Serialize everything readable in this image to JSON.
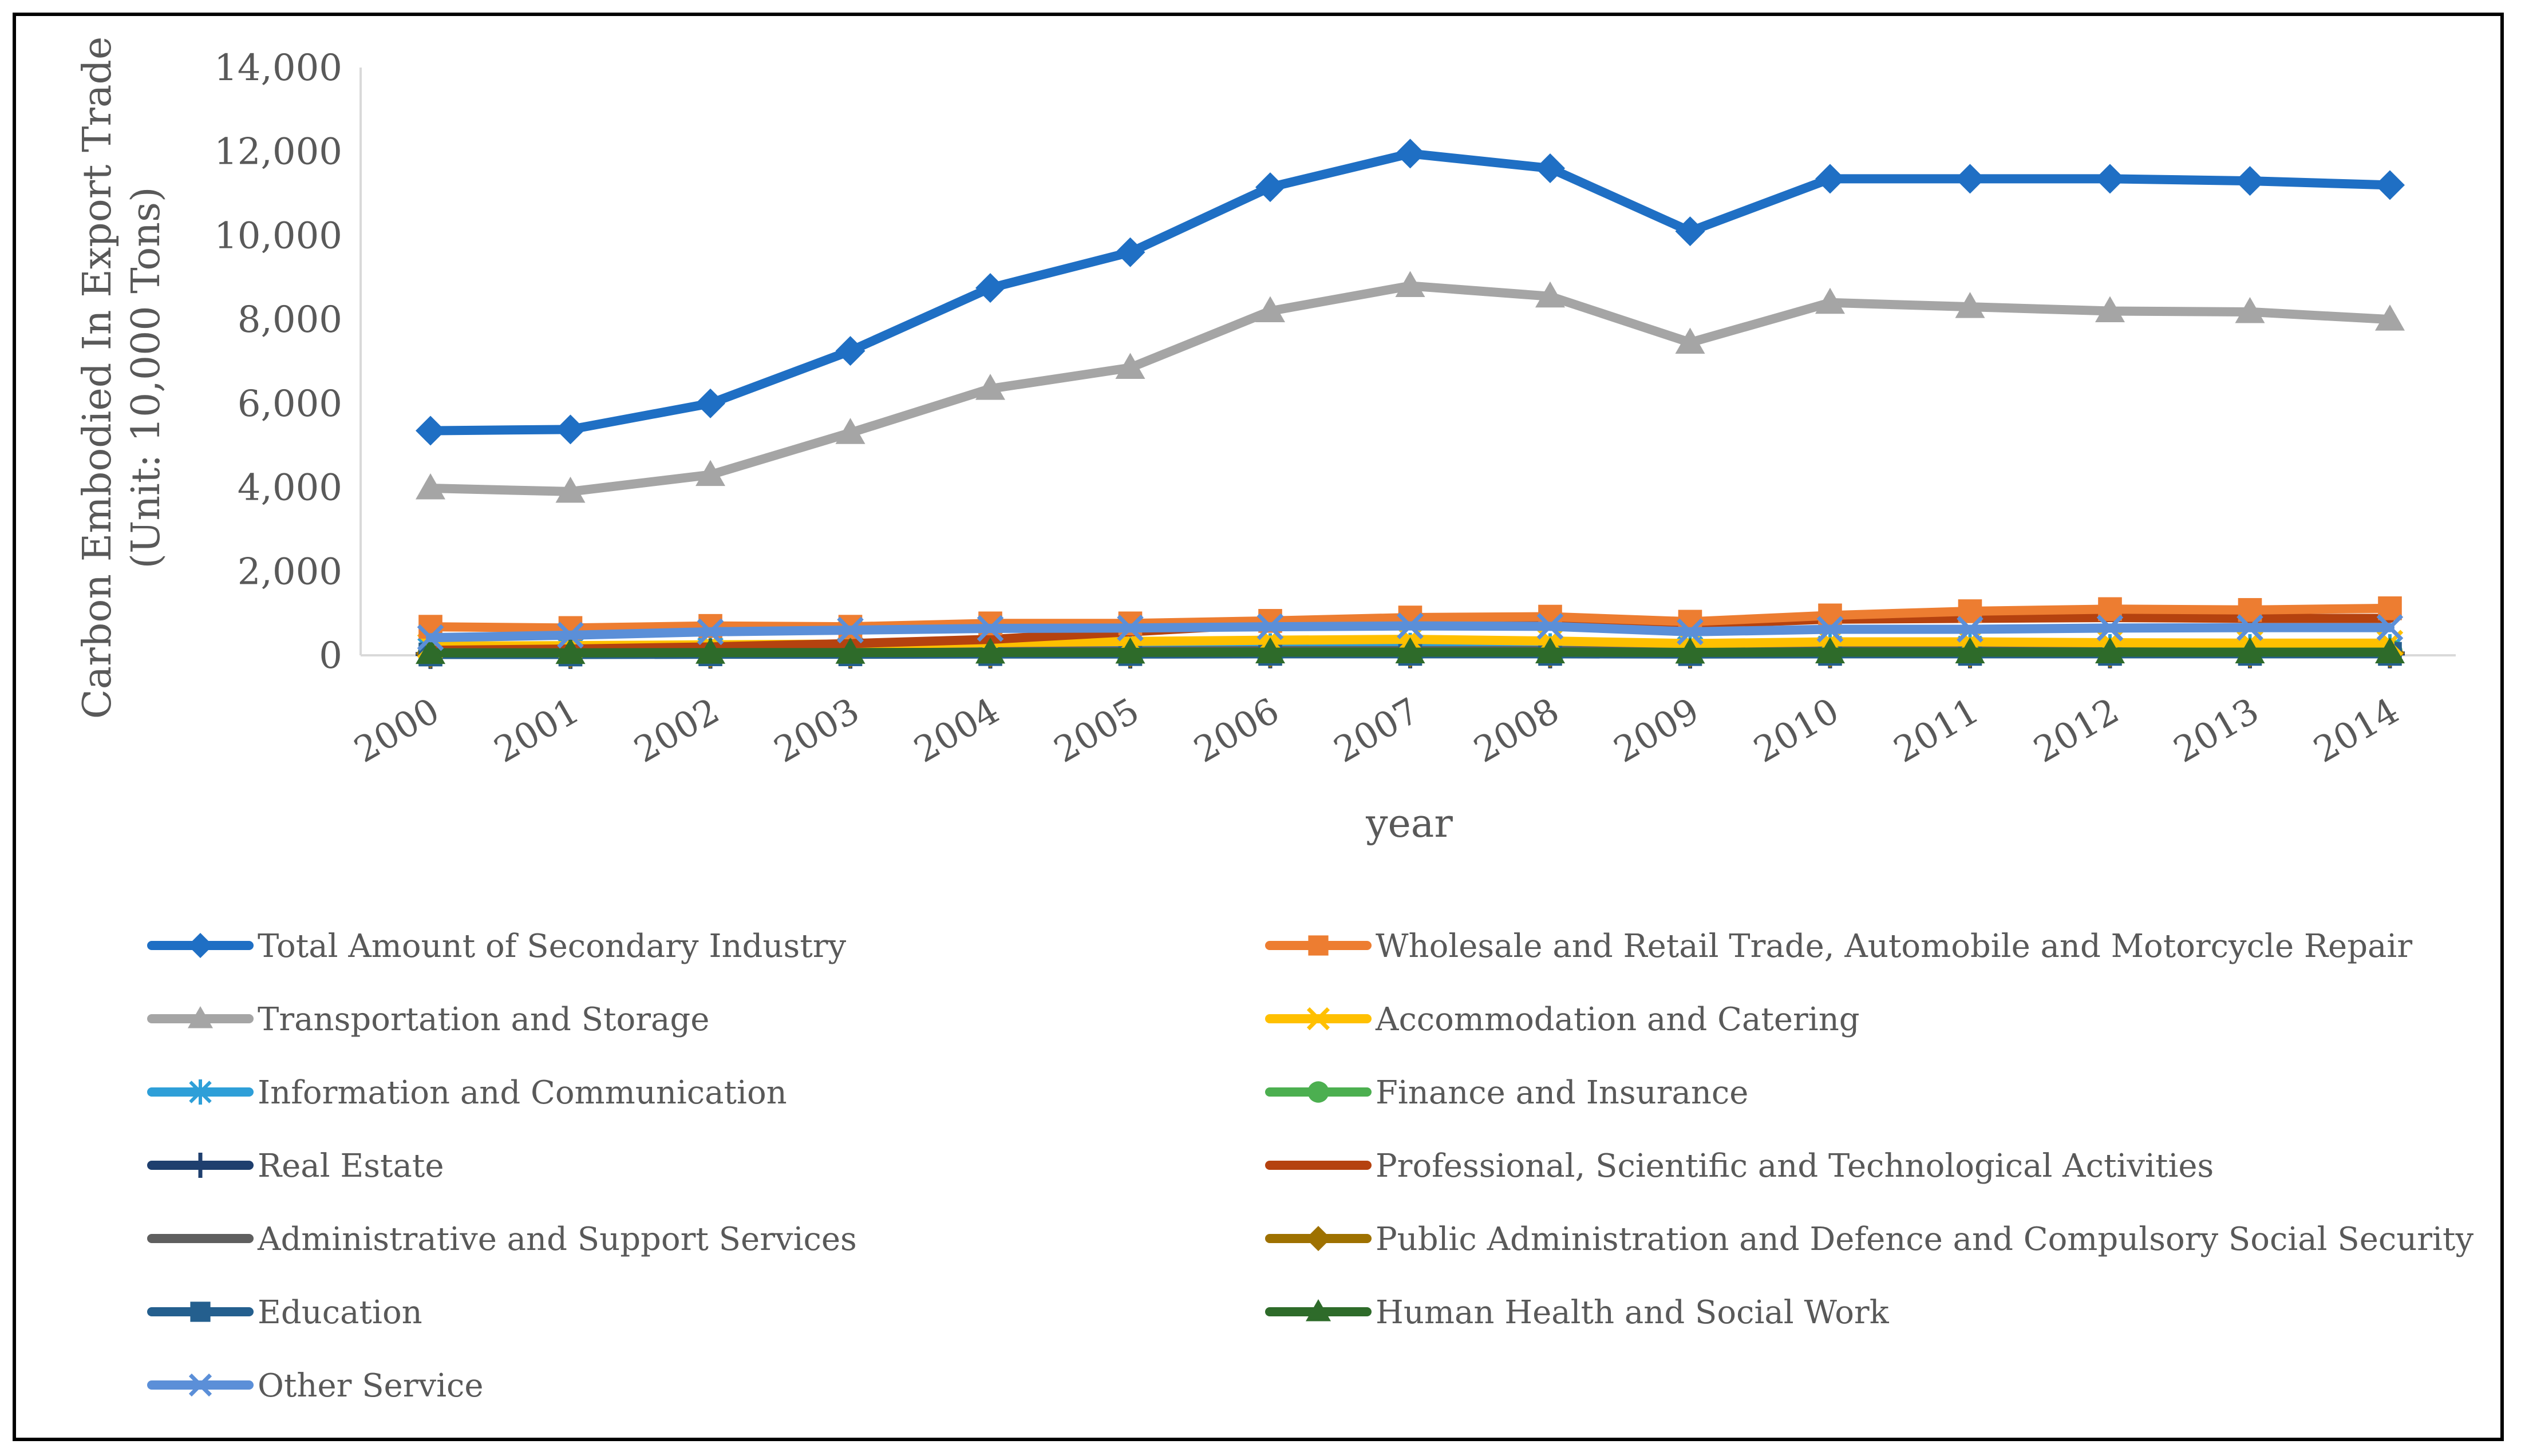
{
  "chart_data": {
    "type": "line",
    "title": "",
    "xlabel": "year",
    "ylabel_line1": "Carbon Embodied In Export Trade",
    "ylabel_line2": "(Unit: 10,000 Tons)",
    "ylim": [
      0,
      14000
    ],
    "yticks": [
      0,
      2000,
      4000,
      6000,
      8000,
      10000,
      12000,
      14000
    ],
    "ytick_labels": [
      "0",
      "2,000",
      "4,000",
      "6,000",
      "8,000",
      "10,000",
      "12,000",
      "14,000"
    ],
    "categories": [
      "2000",
      "2001",
      "2002",
      "2003",
      "2004",
      "2005",
      "2006",
      "2007",
      "2008",
      "2009",
      "2010",
      "2011",
      "2012",
      "2013",
      "2014"
    ],
    "grid": false,
    "legend_position": "bottom",
    "series": [
      {
        "name": "Total Amount of Secondary Industry",
        "color": "#1F6FC4",
        "marker": "diamond",
        "values": [
          5350,
          5380,
          6000,
          7250,
          8750,
          9600,
          11150,
          11950,
          11600,
          10100,
          11350,
          11350,
          11350,
          11300,
          11200
        ]
      },
      {
        "name": "Wholesale and Retail Trade, Automobile and Motorcycle Repair",
        "color": "#ED7D31",
        "marker": "square",
        "values": [
          680,
          650,
          700,
          680,
          760,
          760,
          820,
          900,
          920,
          800,
          950,
          1050,
          1100,
          1080,
          1120
        ]
      },
      {
        "name": "Transportation and Storage",
        "color": "#A5A5A5",
        "marker": "triangle",
        "values": [
          3980,
          3900,
          4300,
          5300,
          6350,
          6850,
          8200,
          8800,
          8550,
          7450,
          8400,
          8300,
          8200,
          8180,
          8000
        ]
      },
      {
        "name": "Accommodation and Catering",
        "color": "#FFC000",
        "marker": "x",
        "values": [
          220,
          230,
          250,
          270,
          300,
          330,
          360,
          380,
          340,
          280,
          320,
          320,
          300,
          290,
          290
        ]
      },
      {
        "name": "Information and Communication",
        "color": "#2E9FD8",
        "marker": "star",
        "values": [
          120,
          120,
          130,
          140,
          150,
          160,
          170,
          180,
          170,
          150,
          160,
          160,
          150,
          150,
          150
        ]
      },
      {
        "name": "Finance and Insurance",
        "color": "#4CAF50",
        "marker": "circle",
        "values": [
          60,
          60,
          70,
          70,
          80,
          80,
          90,
          90,
          90,
          80,
          90,
          90,
          90,
          90,
          90
        ]
      },
      {
        "name": "Real Estate",
        "color": "#1F3F6E",
        "marker": "plus",
        "values": [
          30,
          30,
          35,
          35,
          40,
          40,
          45,
          45,
          45,
          40,
          45,
          45,
          45,
          45,
          45
        ]
      },
      {
        "name": "Professional, Scientific and Technological Activities",
        "color": "#B5420F",
        "marker": "none",
        "values": [
          120,
          150,
          200,
          280,
          380,
          560,
          750,
          880,
          860,
          740,
          860,
          880,
          900,
          880,
          880
        ]
      },
      {
        "name": "Administrative and Support Services",
        "color": "#5F5F5F",
        "marker": "none",
        "values": [
          80,
          80,
          90,
          90,
          100,
          100,
          110,
          110,
          110,
          100,
          110,
          110,
          110,
          110,
          110
        ]
      },
      {
        "name": "Public Administration and Defence and Compulsory Social Security",
        "color": "#9E7100",
        "marker": "diamond",
        "values": [
          40,
          40,
          45,
          45,
          50,
          50,
          55,
          55,
          55,
          50,
          55,
          55,
          55,
          55,
          55
        ]
      },
      {
        "name": "Education",
        "color": "#245F8E",
        "marker": "square",
        "values": [
          20,
          20,
          25,
          25,
          30,
          30,
          35,
          35,
          35,
          30,
          35,
          35,
          35,
          35,
          35
        ]
      },
      {
        "name": "Human Health and Social Work",
        "color": "#2E6B2A",
        "marker": "triangle",
        "values": [
          60,
          60,
          65,
          65,
          70,
          70,
          75,
          75,
          75,
          70,
          75,
          75,
          75,
          75,
          75
        ]
      },
      {
        "name": "Other Service",
        "color": "#5B8FD8",
        "marker": "x",
        "values": [
          420,
          480,
          560,
          600,
          640,
          650,
          680,
          700,
          690,
          560,
          620,
          620,
          650,
          660,
          660
        ]
      }
    ]
  }
}
